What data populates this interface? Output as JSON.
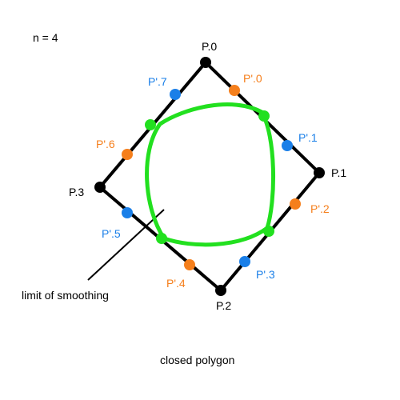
{
  "header_label": "n = 4",
  "caption": "closed polygon",
  "annotation": "limit of smoothing",
  "colors": {
    "background": "#ffffff",
    "polygon": "#000000",
    "vertex": "#000000",
    "blue_point": "#1a7fe8",
    "orange_point": "#f57f1c",
    "curve": "#22e01f",
    "curve_point": "#22e01f",
    "blue_text": "#1a7fe8",
    "orange_text": "#f57f1c"
  },
  "vertices": [
    {
      "id": "P.0",
      "label": "P.0"
    },
    {
      "id": "P.1",
      "label": "P.1"
    },
    {
      "id": "P.2",
      "label": "P.2"
    },
    {
      "id": "P.3",
      "label": "P.3"
    }
  ],
  "subdivision_points": [
    {
      "label": "P'.0",
      "color": "orange"
    },
    {
      "label": "P'.1",
      "color": "blue"
    },
    {
      "label": "P'.2",
      "color": "orange"
    },
    {
      "label": "P'.3",
      "color": "blue"
    },
    {
      "label": "P'.4",
      "color": "orange"
    },
    {
      "label": "P'.5",
      "color": "blue"
    },
    {
      "label": "P'.6",
      "color": "orange"
    },
    {
      "label": "P'.7",
      "color": "blue"
    }
  ]
}
